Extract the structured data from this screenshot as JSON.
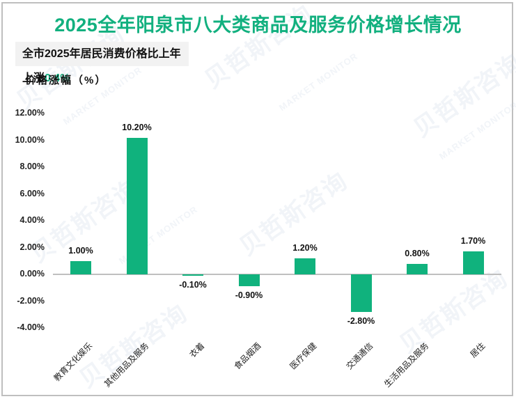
{
  "header": {
    "title": "2025全年阳泉市八大类商品及服务价格增长情况",
    "subtitle_prefix": "全市2025年居民消费价格比上年上涨",
    "subtitle_highlight": "0.4%"
  },
  "watermark": {
    "cn": "贝哲斯咨询",
    "en": "MARKET MONITOR"
  },
  "colors": {
    "accent": "#12b07f",
    "bar": "#10b27d",
    "axis_line": "#bfbfbf",
    "subtitle_bg": "#f2f2f2"
  },
  "chart_data": {
    "type": "bar",
    "title": "2025全年阳泉市八大类商品及服务价格增长情况",
    "subtitle": "全市2025年居民消费价格比上年上涨0.4%",
    "xlabel": "",
    "ylabel": "价格涨幅（%）",
    "ylim": [
      -4,
      12
    ],
    "yticks": [
      "12.00%",
      "10.00%",
      "8.00%",
      "6.00%",
      "4.00%",
      "2.00%",
      "0.00%",
      "-2.00%",
      "-4.00%"
    ],
    "grid": false,
    "legend": "none",
    "categories": [
      "教育文化娱乐",
      "其他用品及服务",
      "衣着",
      "食品烟酒",
      "医疗保健",
      "交通通信",
      "生活用品及服务",
      "居住"
    ],
    "values": [
      1.0,
      10.2,
      -0.1,
      -0.9,
      1.2,
      -2.8,
      0.8,
      1.7
    ],
    "value_labels": [
      "1.00%",
      "10.20%",
      "-0.10%",
      "-0.90%",
      "1.20%",
      "-2.80%",
      "0.80%",
      "1.70%"
    ]
  }
}
